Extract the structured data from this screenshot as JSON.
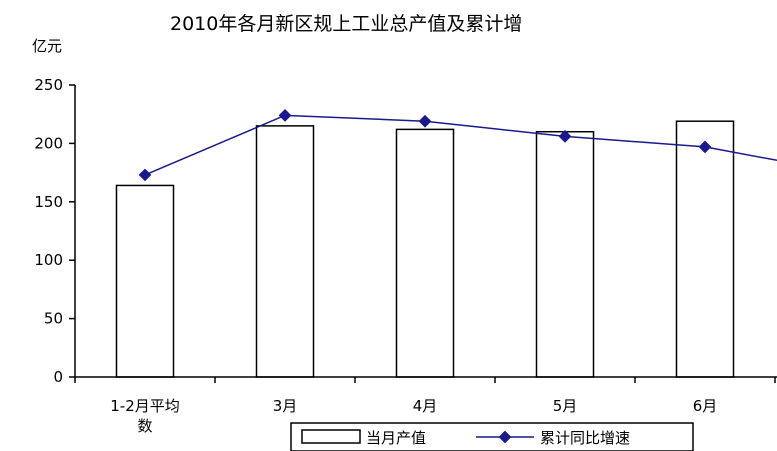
{
  "chart_data": {
    "type": "bar",
    "title": "2010年各月新区规上工业总产值及累计增",
    "ylabel": "亿元",
    "xlabel": "",
    "ylim": [
      0,
      250
    ],
    "yticks": [
      "0",
      "50",
      "100",
      "150",
      "200",
      "250"
    ],
    "categories": [
      "1-2月平均数",
      "3月",
      "4月",
      "5月",
      "6月"
    ],
    "category_lines": [
      [
        "1-2月平均",
        "数"
      ],
      [
        "3月"
      ],
      [
        "4月"
      ],
      [
        "5月"
      ],
      [
        "6月"
      ]
    ],
    "series": [
      {
        "name": "当月产值",
        "type": "bar",
        "values": [
          164,
          215,
          212,
          210,
          219
        ],
        "color": "#ffffff"
      },
      {
        "name": "累计同比增速",
        "type": "line",
        "values": [
          173,
          224,
          219,
          206,
          197
        ],
        "color": "#1a1a8c"
      }
    ],
    "legend": {
      "position": "bottom"
    },
    "grid": false
  }
}
